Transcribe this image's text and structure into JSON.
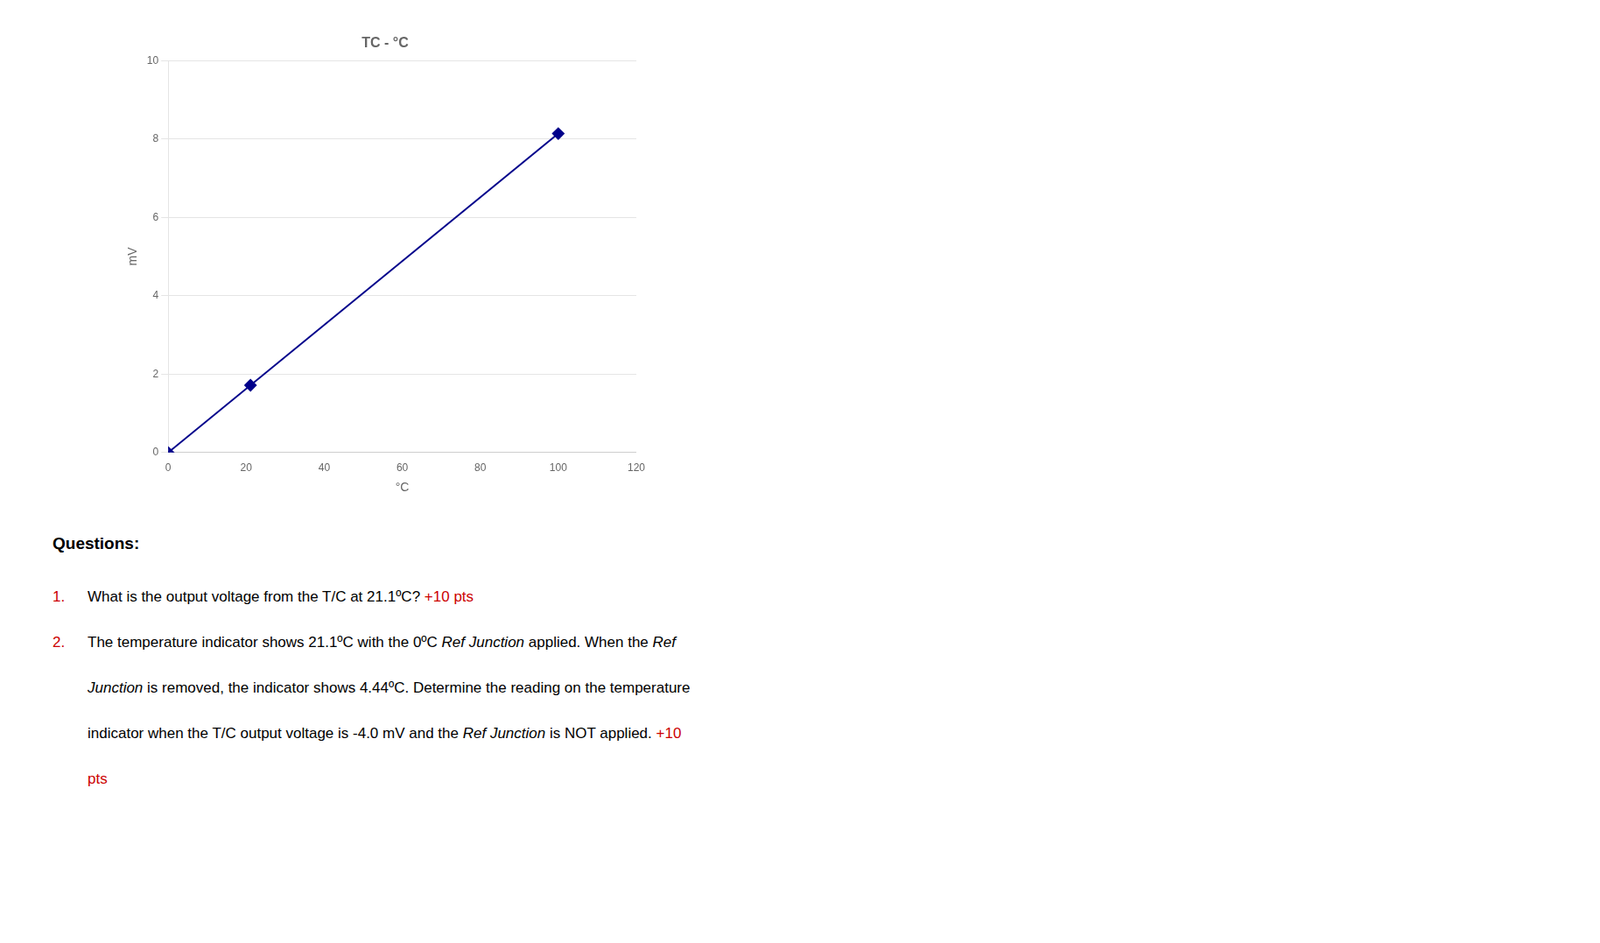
{
  "chart_data": {
    "type": "scatter",
    "title": "TC - °C",
    "x_label": "°C",
    "y_label": "mV",
    "xlim": [
      0,
      120
    ],
    "ylim": [
      0,
      10
    ],
    "xticks": [
      0,
      20,
      40,
      60,
      80,
      100,
      120
    ],
    "yticks": [
      0,
      2,
      4,
      6,
      8,
      10
    ],
    "grid": "y",
    "series": [
      {
        "type": "line",
        "color": "#00008B",
        "x": [
          0,
          100
        ],
        "values": [
          0,
          8.138
        ]
      },
      {
        "type": "scatter",
        "marker": "diamond",
        "color": "#00008B",
        "x": [
          0,
          21.1,
          100
        ],
        "values": [
          0,
          1.716,
          8.138
        ]
      }
    ],
    "annotation_heading": "Questions:",
    "annotations": [
      {
        "label": {
          "text": "1.",
          "color": "#CC0000"
        },
        "segments": [
          {
            "text": "What is the output voltage from the T/C at 21.1ºC? ",
            "color": "#000000"
          },
          {
            "text": "+10 pts",
            "color": "#CC0000"
          }
        ]
      },
      {
        "label": {
          "text": "2.",
          "color": "#CC0000"
        },
        "segments": [
          {
            "text": "The temperature indicator shows 21.1ºC with the 0ºC ",
            "color": "#000000"
          },
          {
            "text": "Ref Junction",
            "color": "#000000",
            "style": "italic"
          },
          {
            "text": " applied. When the ",
            "color": "#000000"
          },
          {
            "text": "Ref",
            "color": "#000000",
            "style": "italic"
          }
        ]
      },
      {
        "segments": [
          {
            "text": "Junction",
            "color": "#000000",
            "style": "italic"
          },
          {
            "text": " is removed, the indicator shows 4.44ºC. Determine the reading on the temperature",
            "color": "#000000"
          }
        ]
      },
      {
        "segments": [
          {
            "text": "indicator when the T/C output voltage is -4.0 mV and the ",
            "color": "#000000"
          },
          {
            "text": "Ref Junction",
            "color": "#000000",
            "style": "italic"
          },
          {
            "text": " is NOT applied.",
            "color": "#000000"
          },
          {
            "text": " +10",
            "color": "#CC0000"
          }
        ]
      },
      {
        "segments": [
          {
            "text": "pts",
            "color": "#CC0000"
          }
        ]
      }
    ]
  }
}
